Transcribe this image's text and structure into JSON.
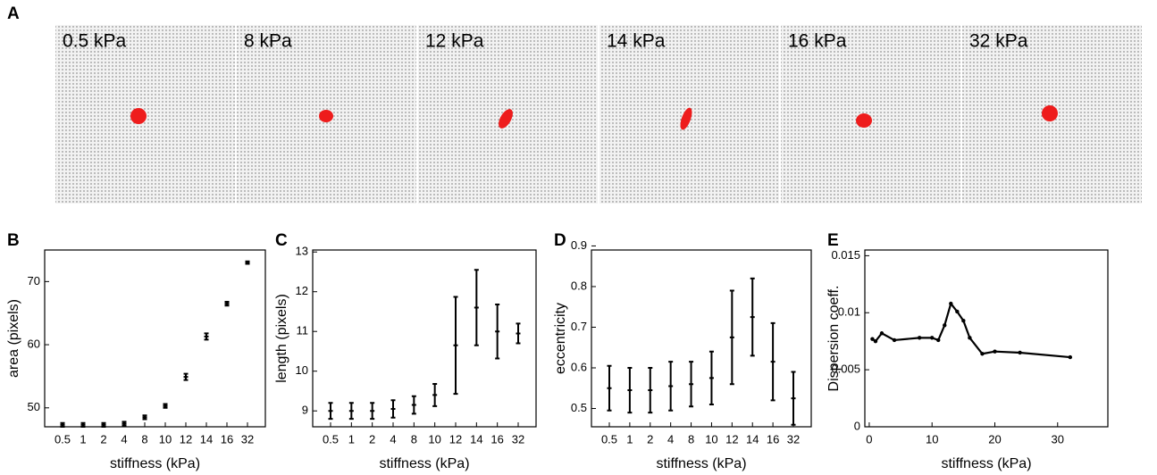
{
  "panel_a": {
    "label": "A",
    "images": [
      "0.5 kPa",
      "8 kPa",
      "12 kPa",
      "14 kPa",
      "16 kPa",
      "32 kPa"
    ]
  },
  "chart_data": [
    {
      "type": "errorbar",
      "panel_label": "B",
      "ylabel": "area (pixels)",
      "xlabel": "stiffness (kPa)",
      "categories": [
        "0.5",
        "1",
        "2",
        "4",
        "8",
        "10",
        "12",
        "14",
        "16",
        "32"
      ],
      "values": [
        47.3,
        47.3,
        47.3,
        47.5,
        48.5,
        50.3,
        54.9,
        61.3,
        66.5,
        73
      ],
      "errors": [
        0.3,
        0.3,
        0.3,
        0.3,
        0.3,
        0.3,
        0.5,
        0.5,
        0.3,
        0.2
      ],
      "ylim": [
        47,
        75
      ],
      "yticks": [
        50,
        60,
        70
      ],
      "color": "#000000"
    },
    {
      "type": "errorbar",
      "panel_label": "C",
      "ylabel": "length (pixels)",
      "xlabel": "stiffness (kPa)",
      "categories": [
        "0.5",
        "1",
        "2",
        "4",
        "8",
        "10",
        "12",
        "14",
        "16",
        "32"
      ],
      "values": [
        9.0,
        9.0,
        9.0,
        9.05,
        9.15,
        9.4,
        10.65,
        11.6,
        11.0,
        10.95
      ],
      "errors": [
        0.2,
        0.2,
        0.2,
        0.22,
        0.22,
        0.28,
        1.22,
        0.95,
        0.68,
        0.25
      ],
      "ylim": [
        8.6,
        13.05
      ],
      "yticks": [
        9,
        10,
        11,
        12,
        13
      ],
      "color": "#000000"
    },
    {
      "type": "errorbar",
      "panel_label": "D",
      "ylabel": "eccentricity",
      "xlabel": "stiffness (kPa)",
      "categories": [
        "0.5",
        "1",
        "2",
        "4",
        "8",
        "10",
        "12",
        "14",
        "16",
        "32"
      ],
      "values": [
        0.55,
        0.545,
        0.545,
        0.555,
        0.56,
        0.575,
        0.675,
        0.725,
        0.615,
        0.525
      ],
      "errors": [
        0.055,
        0.055,
        0.055,
        0.06,
        0.055,
        0.065,
        0.115,
        0.095,
        0.095,
        0.065
      ],
      "ylim": [
        0.455,
        0.89
      ],
      "yticks": [
        0.5,
        0.6,
        0.7,
        0.8,
        0.9
      ],
      "color": "#000000"
    },
    {
      "type": "line",
      "panel_label": "E",
      "ylabel": "Dispersion coeff.",
      "xlabel": "stiffness (kPa)",
      "x": [
        0.5,
        1,
        2,
        4,
        8,
        10,
        11,
        12,
        13,
        14,
        15,
        16,
        18,
        20,
        24,
        32
      ],
      "values": [
        0.0077,
        0.0075,
        0.0082,
        0.0076,
        0.0078,
        0.0078,
        0.0076,
        0.0089,
        0.0108,
        0.0101,
        0.0093,
        0.0078,
        0.0064,
        0.0066,
        0.0065,
        0.0061
      ],
      "xlim": [
        -0.7,
        38
      ],
      "xticks": [
        0,
        10,
        20,
        30
      ],
      "ylim": [
        0,
        0.0155
      ],
      "yticks": [
        0,
        0.005,
        0.01,
        0.015
      ],
      "color": "#000000"
    }
  ]
}
